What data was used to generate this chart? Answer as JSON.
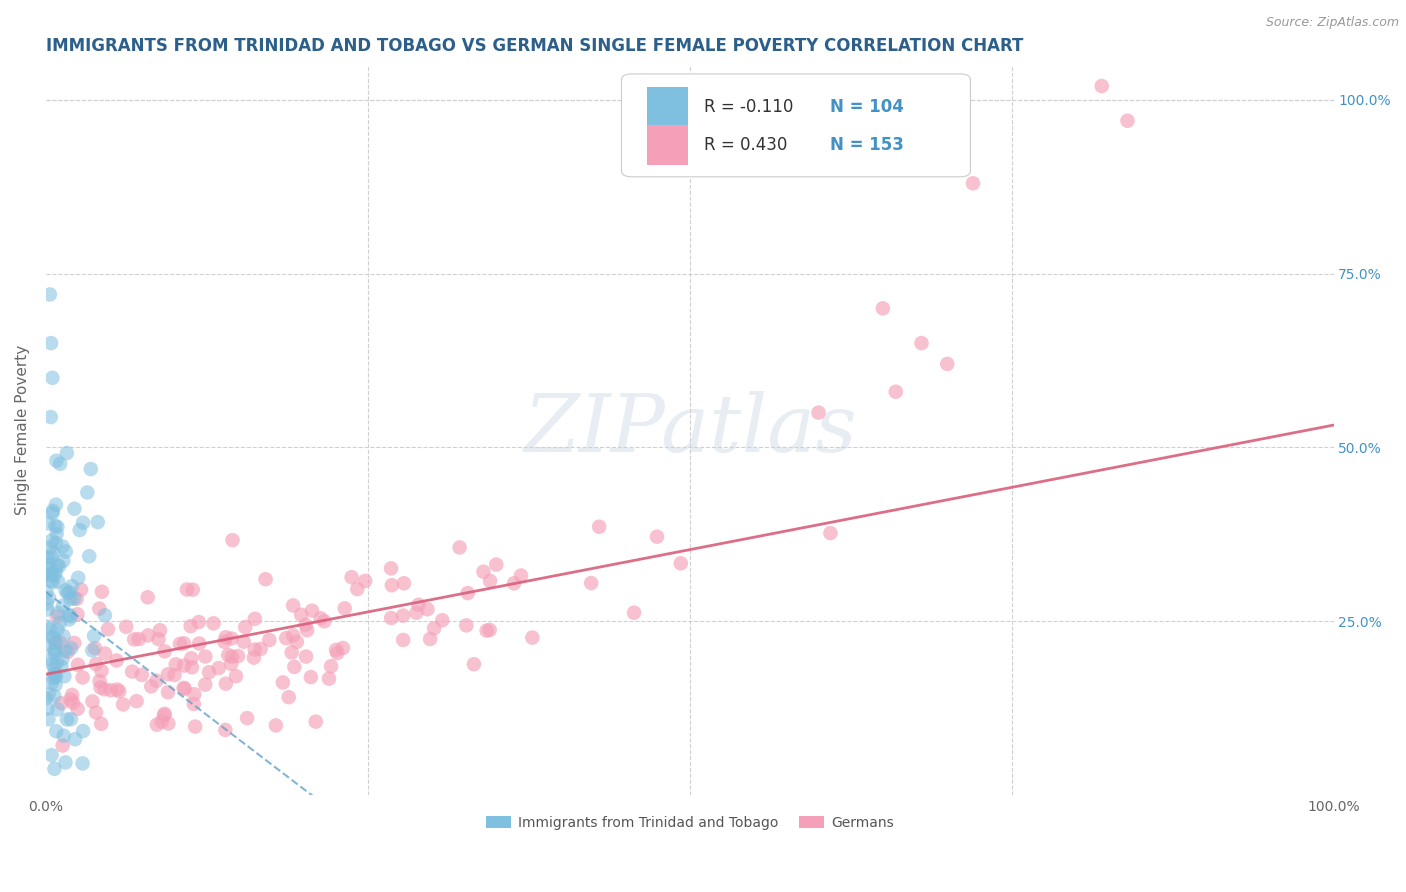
{
  "title": "IMMIGRANTS FROM TRINIDAD AND TOBAGO VS GERMAN SINGLE FEMALE POVERTY CORRELATION CHART",
  "source": "Source: ZipAtlas.com",
  "ylabel": "Single Female Poverty",
  "watermark": "ZIPatlas",
  "blue_color": "#7fbfdf",
  "pink_color": "#f4a0b8",
  "blue_line_color": "#5a9ec9",
  "pink_line_color": "#d95f7a",
  "legend_R1": "R = -0.110",
  "legend_N1": "N = 104",
  "legend_R2": "R = 0.430",
  "legend_N2": "N = 153",
  "blue_R": -0.11,
  "blue_N": 104,
  "pink_R": 0.43,
  "pink_N": 153,
  "label1": "Immigrants from Trinidad and Tobago",
  "label2": "Germans",
  "title_color": "#2c5f8a",
  "source_color": "#999999",
  "grid_color": "#d0d0d0",
  "background_color": "#ffffff",
  "legend_text_color": "#333333",
  "legend_n_color": "#4292c6",
  "right_tick_color": "#4292c6",
  "scatter_size": 110,
  "blue_alpha": 0.55,
  "pink_alpha": 0.65
}
